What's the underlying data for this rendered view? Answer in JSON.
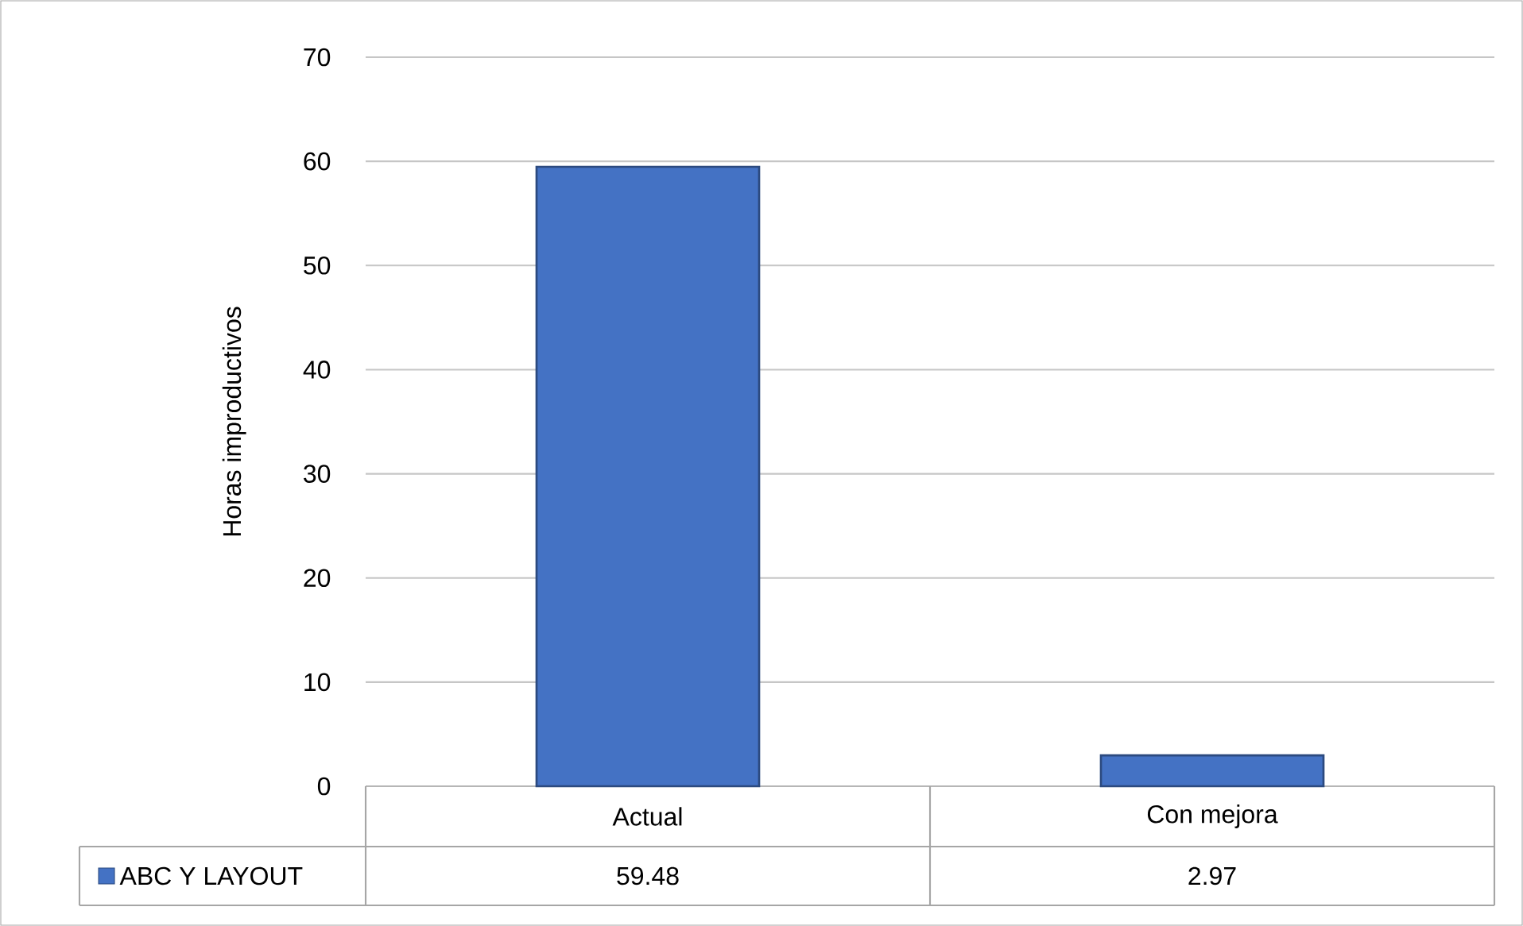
{
  "chart_data": {
    "type": "bar",
    "ylabel": "Horas improductivos",
    "categories": [
      "Actual",
      "Con mejora"
    ],
    "series": [
      {
        "name": "ABC Y LAYOUT",
        "color": "#4472c4",
        "values": [
          59.48,
          2.97
        ]
      }
    ],
    "ylim": [
      0,
      70
    ],
    "yticks": [
      0,
      10,
      20,
      30,
      40,
      50,
      60,
      70
    ],
    "grid": "y",
    "legend": "bottom",
    "data_labels": true
  }
}
